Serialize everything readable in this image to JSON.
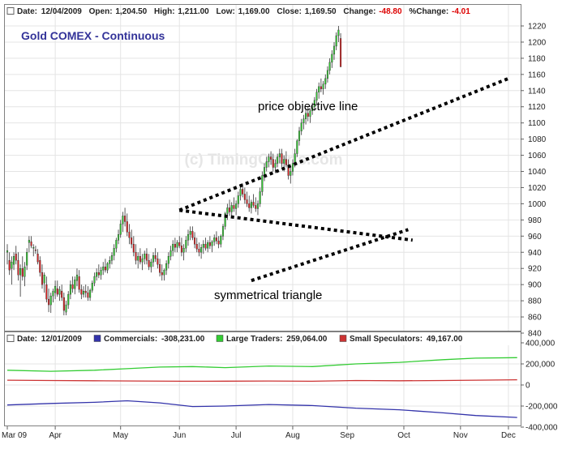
{
  "chart_data": {
    "type": "candlestick",
    "title": "Gold COMEX - Continuous",
    "watermark": "(c) TimingCharts.com",
    "header": {
      "date_label": "Date:",
      "date": "12/04/2009",
      "open_label": "Open:",
      "open": "1,204.50",
      "high_label": "High:",
      "high": "1,211.00",
      "low_label": "Low:",
      "low": "1,169.00",
      "close_label": "Close:",
      "close": "1,169.50",
      "change_label": "Change:",
      "change": "-48.80",
      "pct_change_label": "%Change:",
      "pct_change": "-4.01"
    },
    "annotations": {
      "objective_label": "price objective line",
      "triangle_label": "symmetrical triangle"
    },
    "price_axis": {
      "min": 840,
      "max": 1220,
      "ticks": [
        "1220",
        "1200",
        "1180",
        "1160",
        "1140",
        "1120",
        "1100",
        "1080",
        "1060",
        "1040",
        "1020",
        "1000",
        "980",
        "960",
        "940",
        "920",
        "900",
        "880",
        "860",
        "840"
      ]
    },
    "x_axis": {
      "labels": [
        "Mar 09",
        "Apr",
        "May",
        "Jun",
        "Jul",
        "Aug",
        "Sep",
        "Oct",
        "Nov",
        "Dec"
      ],
      "label_day_index": [
        0,
        22,
        52,
        79,
        105,
        131,
        156,
        182,
        208,
        230
      ],
      "total_days": 234
    },
    "price_series": [
      {
        "o": 940,
        "h": 950,
        "l": 925,
        "c": 942
      },
      {
        "o": 930,
        "h": 940,
        "l": 912,
        "c": 918
      },
      {
        "o": 920,
        "h": 935,
        "l": 900,
        "c": 928
      },
      {
        "o": 925,
        "h": 940,
        "l": 918,
        "c": 935
      },
      {
        "o": 938,
        "h": 948,
        "l": 925,
        "c": 930
      },
      {
        "o": 930,
        "h": 940,
        "l": 905,
        "c": 912
      },
      {
        "o": 912,
        "h": 925,
        "l": 885,
        "c": 920
      },
      {
        "o": 920,
        "h": 935,
        "l": 905,
        "c": 910
      },
      {
        "o": 910,
        "h": 928,
        "l": 898,
        "c": 922
      },
      {
        "o": 924,
        "h": 945,
        "l": 918,
        "c": 940
      },
      {
        "o": 952,
        "h": 960,
        "l": 940,
        "c": 955
      },
      {
        "o": 953,
        "h": 960,
        "l": 945,
        "c": 948
      },
      {
        "o": 945,
        "h": 950,
        "l": 935,
        "c": 946
      },
      {
        "o": 943,
        "h": 948,
        "l": 938,
        "c": 942
      },
      {
        "o": 938,
        "h": 944,
        "l": 925,
        "c": 928
      },
      {
        "o": 930,
        "h": 935,
        "l": 910,
        "c": 915
      },
      {
        "o": 915,
        "h": 925,
        "l": 895,
        "c": 900
      },
      {
        "o": 902,
        "h": 915,
        "l": 890,
        "c": 912
      },
      {
        "o": 900,
        "h": 910,
        "l": 878,
        "c": 882
      },
      {
        "o": 882,
        "h": 895,
        "l": 866,
        "c": 875
      },
      {
        "o": 875,
        "h": 890,
        "l": 865,
        "c": 886
      },
      {
        "o": 886,
        "h": 895,
        "l": 878,
        "c": 892
      },
      {
        "o": 890,
        "h": 905,
        "l": 882,
        "c": 898
      },
      {
        "o": 895,
        "h": 905,
        "l": 885,
        "c": 888
      },
      {
        "o": 888,
        "h": 898,
        "l": 880,
        "c": 894
      },
      {
        "o": 892,
        "h": 900,
        "l": 880,
        "c": 884
      },
      {
        "o": 884,
        "h": 890,
        "l": 862,
        "c": 868
      },
      {
        "o": 866,
        "h": 880,
        "l": 862,
        "c": 875
      },
      {
        "o": 875,
        "h": 892,
        "l": 870,
        "c": 888
      },
      {
        "o": 888,
        "h": 905,
        "l": 882,
        "c": 900
      },
      {
        "o": 900,
        "h": 910,
        "l": 890,
        "c": 895
      },
      {
        "o": 895,
        "h": 910,
        "l": 888,
        "c": 906
      },
      {
        "o": 905,
        "h": 920,
        "l": 898,
        "c": 912
      },
      {
        "o": 910,
        "h": 918,
        "l": 890,
        "c": 894
      },
      {
        "o": 894,
        "h": 900,
        "l": 882,
        "c": 888
      },
      {
        "o": 888,
        "h": 898,
        "l": 884,
        "c": 892
      },
      {
        "o": 892,
        "h": 900,
        "l": 884,
        "c": 890
      },
      {
        "o": 890,
        "h": 898,
        "l": 880,
        "c": 884
      },
      {
        "o": 884,
        "h": 895,
        "l": 880,
        "c": 893
      },
      {
        "o": 893,
        "h": 905,
        "l": 890,
        "c": 902
      },
      {
        "o": 902,
        "h": 915,
        "l": 898,
        "c": 910
      },
      {
        "o": 910,
        "h": 920,
        "l": 905,
        "c": 915
      },
      {
        "o": 915,
        "h": 925,
        "l": 908,
        "c": 912
      },
      {
        "o": 912,
        "h": 922,
        "l": 906,
        "c": 918
      },
      {
        "o": 918,
        "h": 928,
        "l": 912,
        "c": 922
      },
      {
        "o": 922,
        "h": 932,
        "l": 915,
        "c": 918
      },
      {
        "o": 918,
        "h": 928,
        "l": 914,
        "c": 926
      },
      {
        "o": 926,
        "h": 935,
        "l": 920,
        "c": 930
      },
      {
        "o": 930,
        "h": 940,
        "l": 925,
        "c": 936
      },
      {
        "o": 936,
        "h": 950,
        "l": 930,
        "c": 945
      },
      {
        "o": 945,
        "h": 958,
        "l": 940,
        "c": 955
      },
      {
        "o": 955,
        "h": 968,
        "l": 950,
        "c": 962
      },
      {
        "o": 962,
        "h": 980,
        "l": 958,
        "c": 975
      },
      {
        "o": 975,
        "h": 990,
        "l": 965,
        "c": 985
      },
      {
        "o": 985,
        "h": 995,
        "l": 972,
        "c": 978
      },
      {
        "o": 978,
        "h": 988,
        "l": 960,
        "c": 965
      },
      {
        "o": 965,
        "h": 975,
        "l": 950,
        "c": 958
      },
      {
        "o": 958,
        "h": 968,
        "l": 945,
        "c": 950
      },
      {
        "o": 950,
        "h": 960,
        "l": 935,
        "c": 940
      },
      {
        "o": 940,
        "h": 950,
        "l": 925,
        "c": 930
      },
      {
        "o": 930,
        "h": 940,
        "l": 920,
        "c": 935
      },
      {
        "o": 935,
        "h": 945,
        "l": 925,
        "c": 928
      },
      {
        "o": 928,
        "h": 938,
        "l": 918,
        "c": 932
      },
      {
        "o": 932,
        "h": 942,
        "l": 925,
        "c": 938
      },
      {
        "o": 938,
        "h": 945,
        "l": 925,
        "c": 930
      },
      {
        "o": 930,
        "h": 938,
        "l": 918,
        "c": 922
      },
      {
        "o": 922,
        "h": 932,
        "l": 915,
        "c": 928
      },
      {
        "o": 928,
        "h": 940,
        "l": 922,
        "c": 936
      },
      {
        "o": 936,
        "h": 945,
        "l": 928,
        "c": 932
      },
      {
        "o": 932,
        "h": 940,
        "l": 920,
        "c": 925
      },
      {
        "o": 925,
        "h": 932,
        "l": 910,
        "c": 915
      },
      {
        "o": 915,
        "h": 925,
        "l": 905,
        "c": 912
      },
      {
        "o": 912,
        "h": 920,
        "l": 905,
        "c": 918
      },
      {
        "o": 918,
        "h": 930,
        "l": 912,
        "c": 926
      },
      {
        "o": 926,
        "h": 940,
        "l": 920,
        "c": 935
      },
      {
        "o": 935,
        "h": 948,
        "l": 930,
        "c": 942
      },
      {
        "o": 942,
        "h": 955,
        "l": 935,
        "c": 950
      },
      {
        "o": 950,
        "h": 958,
        "l": 940,
        "c": 946
      },
      {
        "o": 946,
        "h": 955,
        "l": 940,
        "c": 952
      },
      {
        "o": 952,
        "h": 960,
        "l": 945,
        "c": 948
      },
      {
        "o": 948,
        "h": 958,
        "l": 935,
        "c": 940
      },
      {
        "o": 940,
        "h": 950,
        "l": 930,
        "c": 945
      },
      {
        "o": 945,
        "h": 960,
        "l": 940,
        "c": 955
      },
      {
        "o": 955,
        "h": 968,
        "l": 948,
        "c": 962
      },
      {
        "o": 962,
        "h": 972,
        "l": 955,
        "c": 966
      },
      {
        "o": 966,
        "h": 972,
        "l": 955,
        "c": 958
      },
      {
        "o": 958,
        "h": 965,
        "l": 945,
        "c": 950
      },
      {
        "o": 950,
        "h": 958,
        "l": 940,
        "c": 944
      },
      {
        "o": 944,
        "h": 952,
        "l": 935,
        "c": 940
      },
      {
        "o": 940,
        "h": 950,
        "l": 932,
        "c": 946
      },
      {
        "o": 946,
        "h": 955,
        "l": 938,
        "c": 950
      },
      {
        "o": 950,
        "h": 958,
        "l": 942,
        "c": 945
      },
      {
        "o": 945,
        "h": 955,
        "l": 940,
        "c": 952
      },
      {
        "o": 952,
        "h": 960,
        "l": 944,
        "c": 948
      },
      {
        "o": 948,
        "h": 955,
        "l": 940,
        "c": 953
      },
      {
        "o": 953,
        "h": 962,
        "l": 948,
        "c": 958
      },
      {
        "o": 958,
        "h": 966,
        "l": 950,
        "c": 954
      },
      {
        "o": 954,
        "h": 960,
        "l": 945,
        "c": 950
      },
      {
        "o": 950,
        "h": 962,
        "l": 946,
        "c": 960
      },
      {
        "o": 960,
        "h": 975,
        "l": 955,
        "c": 972
      },
      {
        "o": 972,
        "h": 990,
        "l": 968,
        "c": 988
      },
      {
        "o": 988,
        "h": 1000,
        "l": 980,
        "c": 995
      },
      {
        "o": 995,
        "h": 1005,
        "l": 985,
        "c": 990
      },
      {
        "o": 990,
        "h": 1002,
        "l": 984,
        "c": 998
      },
      {
        "o": 998,
        "h": 1008,
        "l": 990,
        "c": 994
      },
      {
        "o": 994,
        "h": 1004,
        "l": 986,
        "c": 1000
      },
      {
        "o": 1000,
        "h": 1015,
        "l": 995,
        "c": 1010
      },
      {
        "o": 1010,
        "h": 1022,
        "l": 1004,
        "c": 1018
      },
      {
        "o": 1018,
        "h": 1025,
        "l": 1008,
        "c": 1012
      },
      {
        "o": 1012,
        "h": 1020,
        "l": 1000,
        "c": 1005
      },
      {
        "o": 1005,
        "h": 1015,
        "l": 996,
        "c": 1000
      },
      {
        "o": 1000,
        "h": 1010,
        "l": 990,
        "c": 995
      },
      {
        "o": 995,
        "h": 1005,
        "l": 988,
        "c": 1002
      },
      {
        "o": 1002,
        "h": 1012,
        "l": 995,
        "c": 998
      },
      {
        "o": 998,
        "h": 1008,
        "l": 990,
        "c": 994
      },
      {
        "o": 994,
        "h": 1004,
        "l": 986,
        "c": 1000
      },
      {
        "o": 1000,
        "h": 1020,
        "l": 996,
        "c": 1015
      },
      {
        "o": 1015,
        "h": 1040,
        "l": 1010,
        "c": 1035
      },
      {
        "o": 1035,
        "h": 1050,
        "l": 1028,
        "c": 1045
      },
      {
        "o": 1045,
        "h": 1058,
        "l": 1040,
        "c": 1052
      },
      {
        "o": 1052,
        "h": 1062,
        "l": 1045,
        "c": 1058
      },
      {
        "o": 1058,
        "h": 1065,
        "l": 1048,
        "c": 1055
      },
      {
        "o": 1055,
        "h": 1062,
        "l": 1040,
        "c": 1045
      },
      {
        "o": 1045,
        "h": 1055,
        "l": 1038,
        "c": 1050
      },
      {
        "o": 1050,
        "h": 1062,
        "l": 1045,
        "c": 1058
      },
      {
        "o": 1058,
        "h": 1068,
        "l": 1050,
        "c": 1062
      },
      {
        "o": 1062,
        "h": 1068,
        "l": 1045,
        "c": 1050
      },
      {
        "o": 1050,
        "h": 1060,
        "l": 1040,
        "c": 1055
      },
      {
        "o": 1055,
        "h": 1065,
        "l": 1045,
        "c": 1048
      },
      {
        "o": 1048,
        "h": 1055,
        "l": 1030,
        "c": 1035
      },
      {
        "o": 1035,
        "h": 1045,
        "l": 1025,
        "c": 1040
      },
      {
        "o": 1040,
        "h": 1055,
        "l": 1035,
        "c": 1050
      },
      {
        "o": 1050,
        "h": 1068,
        "l": 1045,
        "c": 1062
      },
      {
        "o": 1062,
        "h": 1080,
        "l": 1058,
        "c": 1078
      },
      {
        "o": 1078,
        "h": 1095,
        "l": 1072,
        "c": 1090
      },
      {
        "o": 1090,
        "h": 1105,
        "l": 1085,
        "c": 1100
      },
      {
        "o": 1100,
        "h": 1110,
        "l": 1092,
        "c": 1105
      },
      {
        "o": 1105,
        "h": 1118,
        "l": 1098,
        "c": 1112
      },
      {
        "o": 1112,
        "h": 1120,
        "l": 1102,
        "c": 1108
      },
      {
        "o": 1108,
        "h": 1118,
        "l": 1100,
        "c": 1115
      },
      {
        "o": 1115,
        "h": 1125,
        "l": 1110,
        "c": 1120
      },
      {
        "o": 1120,
        "h": 1132,
        "l": 1115,
        "c": 1128
      },
      {
        "o": 1128,
        "h": 1142,
        "l": 1122,
        "c": 1138
      },
      {
        "o": 1138,
        "h": 1150,
        "l": 1130,
        "c": 1145
      },
      {
        "o": 1145,
        "h": 1155,
        "l": 1138,
        "c": 1142
      },
      {
        "o": 1142,
        "h": 1152,
        "l": 1135,
        "c": 1148
      },
      {
        "o": 1148,
        "h": 1160,
        "l": 1142,
        "c": 1155
      },
      {
        "o": 1155,
        "h": 1170,
        "l": 1150,
        "c": 1165
      },
      {
        "o": 1165,
        "h": 1180,
        "l": 1160,
        "c": 1175
      },
      {
        "o": 1175,
        "h": 1190,
        "l": 1168,
        "c": 1185
      },
      {
        "o": 1185,
        "h": 1200,
        "l": 1178,
        "c": 1195
      },
      {
        "o": 1195,
        "h": 1212,
        "l": 1190,
        "c": 1208
      },
      {
        "o": 1208,
        "h": 1220,
        "l": 1200,
        "c": 1215
      },
      {
        "o": 1204.5,
        "h": 1211,
        "l": 1169,
        "c": 1169.5
      }
    ],
    "triangle_lines": [
      {
        "from": {
          "day": 79,
          "price": 992
        },
        "to": {
          "day": 186,
          "price": 955
        }
      },
      {
        "from": {
          "day": 112,
          "price": 905
        },
        "to": {
          "day": 184,
          "price": 968
        }
      }
    ],
    "objective_line": {
      "from": {
        "day": 79,
        "price": 992
      },
      "to": {
        "day": 230,
        "price": 1155
      }
    },
    "cot": {
      "date_label": "Date:",
      "date": "12/01/2009",
      "ylim": [
        -400000,
        400000
      ],
      "ticks": [
        "400,000",
        "200,000",
        "0",
        "-200,000",
        "-400,000"
      ],
      "series": [
        {
          "name": "Commercials",
          "value_text": "-308,231.00",
          "color": "#3333aa",
          "x": [
            0,
            20,
            40,
            55,
            70,
            85,
            100,
            120,
            140,
            160,
            180,
            200,
            215,
            234
          ],
          "values": [
            -190000,
            -175000,
            -165000,
            -150000,
            -170000,
            -205000,
            -200000,
            -185000,
            -195000,
            -220000,
            -235000,
            -265000,
            -290000,
            -308231
          ]
        },
        {
          "name": "Large Traders",
          "value_text": "259,064.00",
          "color": "#33cc33",
          "x": [
            0,
            20,
            40,
            55,
            70,
            85,
            100,
            120,
            140,
            160,
            180,
            200,
            215,
            234
          ],
          "values": [
            140000,
            130000,
            140000,
            155000,
            170000,
            175000,
            165000,
            180000,
            175000,
            200000,
            215000,
            240000,
            255000,
            259064
          ]
        },
        {
          "name": "Small Speculators",
          "value_text": "49,167.00",
          "color": "#cc3333",
          "x": [
            0,
            20,
            40,
            60,
            80,
            100,
            120,
            140,
            160,
            180,
            200,
            220,
            234
          ],
          "values": [
            45000,
            42000,
            40000,
            38000,
            35000,
            36000,
            38000,
            35000,
            42000,
            40000,
            42000,
            46000,
            49167
          ]
        }
      ]
    }
  },
  "colors": {
    "up": "#33cc33",
    "down": "#dd2222",
    "header_red": "#dd0000",
    "title_blue": "#333399",
    "grid": "#e4e4e4",
    "frame": "#808080"
  }
}
